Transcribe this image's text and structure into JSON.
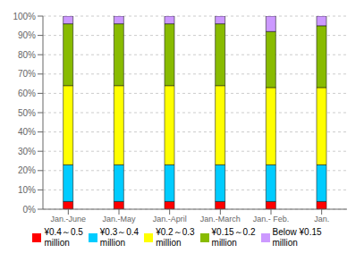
{
  "chart_data": {
    "type": "bar",
    "stacked": true,
    "grid": true,
    "categories": [
      "Jan.-June",
      "Jan.-May",
      "Jan.-April",
      "Jan.-March",
      "Jan.- Feb.",
      "Jan."
    ],
    "series": [
      {
        "name": "¥0.4～0.5\nmillion",
        "color": "#FF0000",
        "values": [
          4,
          4,
          4,
          4,
          4,
          4
        ]
      },
      {
        "name": "¥0.3～0.4\nmillion",
        "color": "#00CCFF",
        "values": [
          19,
          19,
          19,
          19,
          19,
          19
        ]
      },
      {
        "name": "¥0.2～0.3\nmillion",
        "color": "#FFFF00",
        "values": [
          41,
          41,
          41,
          41,
          40,
          40
        ]
      },
      {
        "name": "¥0.15～0.2\nmillion",
        "color": "#88BB00",
        "values": [
          32,
          32,
          32,
          32,
          29,
          32
        ]
      },
      {
        "name": "Below ¥0.15\nmillion",
        "color": "#CC99FF",
        "values": [
          4,
          4,
          4,
          4,
          8,
          5
        ]
      }
    ],
    "ylim": [
      0,
      100
    ],
    "yticks": [
      {
        "value": 0,
        "label": "0%"
      },
      {
        "value": 10,
        "label": "10%"
      },
      {
        "value": 20,
        "label": "20%"
      },
      {
        "value": 30,
        "label": "30%"
      },
      {
        "value": 40,
        "label": "40%"
      },
      {
        "value": 50,
        "label": "50%"
      },
      {
        "value": 60,
        "label": "60%"
      },
      {
        "value": 70,
        "label": "70%"
      },
      {
        "value": 80,
        "label": "80%"
      },
      {
        "value": 90,
        "label": "90%"
      },
      {
        "value": 100,
        "label": "100%"
      }
    ]
  }
}
